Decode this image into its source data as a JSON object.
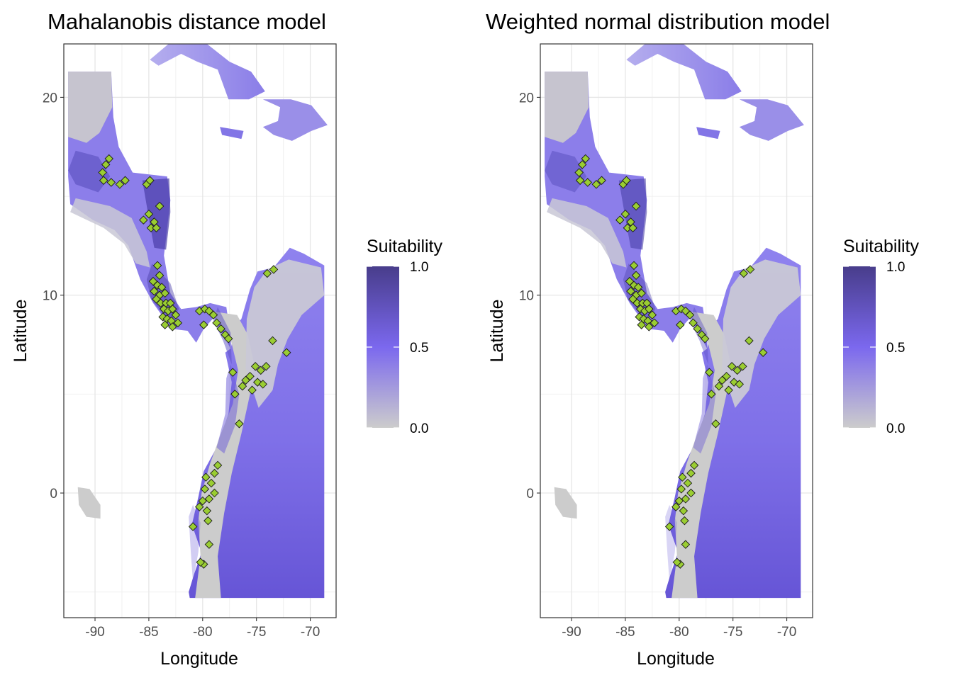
{
  "panels": [
    {
      "title": "Mahalanobis distance model",
      "xlabel": "Longitude",
      "ylabel": "Latitude",
      "legend_title": "Suitability"
    },
    {
      "title": "Weighted normal distribution model",
      "xlabel": "Longitude",
      "ylabel": "Latitude",
      "legend_title": "Suitability"
    }
  ],
  "chart_data": [
    {
      "type": "heatmap",
      "title": "Mahalanobis distance model",
      "xlabel": "Longitude",
      "ylabel": "Latitude",
      "xlim": [
        -92.9,
        -67.6
      ],
      "ylim": [
        -6.3,
        22.7
      ],
      "x_ticks": [
        -90,
        -85,
        -80,
        -75,
        -70
      ],
      "y_ticks": [
        0,
        10,
        20
      ],
      "x_tick_labels": [
        "-90",
        "-85",
        "-80",
        "-75",
        "-70"
      ],
      "y_tick_labels": [
        "0",
        "10",
        "20"
      ],
      "grid": true,
      "legend": {
        "title": "Suitability",
        "placement": "right",
        "ticks": [
          "0.0",
          "0.5",
          "1.0"
        ],
        "colors": [
          "#cccccc",
          "#7b68ee",
          "#483d8b"
        ]
      },
      "points_color": "#9acd32"
    },
    {
      "type": "heatmap",
      "title": "Weighted normal distribution model",
      "xlabel": "Longitude",
      "ylabel": "Latitude",
      "xlim": [
        -92.9,
        -67.6
      ],
      "ylim": [
        -6.3,
        22.7
      ],
      "x_ticks": [
        -90,
        -85,
        -80,
        -75,
        -70
      ],
      "y_ticks": [
        0,
        10,
        20
      ],
      "x_tick_labels": [
        "-90",
        "-85",
        "-80",
        "-75",
        "-70"
      ],
      "y_tick_labels": [
        "0",
        "10",
        "20"
      ],
      "grid": true,
      "legend": {
        "title": "Suitability",
        "placement": "right",
        "ticks": [
          "0.0",
          "0.5",
          "1.0"
        ],
        "colors": [
          "#cccccc",
          "#7b68ee",
          "#483d8b"
        ]
      },
      "points_color": "#9acd32"
    }
  ],
  "occurrences": [
    [
      -89.3,
      16.2
    ],
    [
      -89.0,
      16.6
    ],
    [
      -88.7,
      16.9
    ],
    [
      -89.2,
      15.8
    ],
    [
      -88.5,
      15.7
    ],
    [
      -87.7,
      15.6
    ],
    [
      -87.2,
      15.8
    ],
    [
      -85.2,
      15.6
    ],
    [
      -84.9,
      15.8
    ],
    [
      -84.0,
      14.5
    ],
    [
      -85.0,
      14.1
    ],
    [
      -84.5,
      13.7
    ],
    [
      -85.5,
      13.8
    ],
    [
      -84.8,
      13.4
    ],
    [
      -84.3,
      13.4
    ],
    [
      -84.2,
      11.5
    ],
    [
      -84.0,
      11.0
    ],
    [
      -84.6,
      10.7
    ],
    [
      -84.2,
      10.5
    ],
    [
      -83.8,
      10.4
    ],
    [
      -84.5,
      10.2
    ],
    [
      -84.0,
      10.0
    ],
    [
      -83.5,
      10.1
    ],
    [
      -84.3,
      9.8
    ],
    [
      -83.9,
      9.6
    ],
    [
      -83.4,
      9.6
    ],
    [
      -83.0,
      9.6
    ],
    [
      -83.6,
      9.3
    ],
    [
      -83.2,
      9.2
    ],
    [
      -82.8,
      9.3
    ],
    [
      -82.5,
      9.0
    ],
    [
      -83.7,
      8.9
    ],
    [
      -83.3,
      8.8
    ],
    [
      -82.9,
      8.7
    ],
    [
      -82.3,
      8.6
    ],
    [
      -83.5,
      8.5
    ],
    [
      -82.8,
      8.4
    ],
    [
      -80.3,
      9.2
    ],
    [
      -79.8,
      9.3
    ],
    [
      -79.4,
      9.2
    ],
    [
      -79.0,
      9.0
    ],
    [
      -78.7,
      8.6
    ],
    [
      -78.3,
      8.3
    ],
    [
      -77.9,
      8.0
    ],
    [
      -79.9,
      8.5
    ],
    [
      -77.6,
      7.8
    ],
    [
      -74.0,
      11.1
    ],
    [
      -73.4,
      11.3
    ],
    [
      -73.5,
      7.7
    ],
    [
      -72.2,
      7.1
    ],
    [
      -77.2,
      6.1
    ],
    [
      -75.1,
      6.4
    ],
    [
      -74.6,
      6.2
    ],
    [
      -74.1,
      6.4
    ],
    [
      -75.6,
      5.9
    ],
    [
      -74.9,
      5.6
    ],
    [
      -75.4,
      5.2
    ],
    [
      -74.4,
      5.5
    ],
    [
      -76.3,
      5.4
    ],
    [
      -77.0,
      5.0
    ],
    [
      -76.0,
      5.7
    ],
    [
      -76.6,
      3.5
    ],
    [
      -78.6,
      1.4
    ],
    [
      -78.9,
      1.0
    ],
    [
      -79.7,
      0.8
    ],
    [
      -79.2,
      0.5
    ],
    [
      -79.8,
      0.2
    ],
    [
      -78.9,
      0.0
    ],
    [
      -79.4,
      -0.3
    ],
    [
      -80.0,
      -0.4
    ],
    [
      -79.6,
      -0.9
    ],
    [
      -80.3,
      -0.7
    ],
    [
      -79.5,
      -1.4
    ],
    [
      -80.9,
      -1.7
    ],
    [
      -79.4,
      -2.6
    ],
    [
      -79.9,
      -3.6
    ],
    [
      -80.2,
      -3.5
    ]
  ]
}
